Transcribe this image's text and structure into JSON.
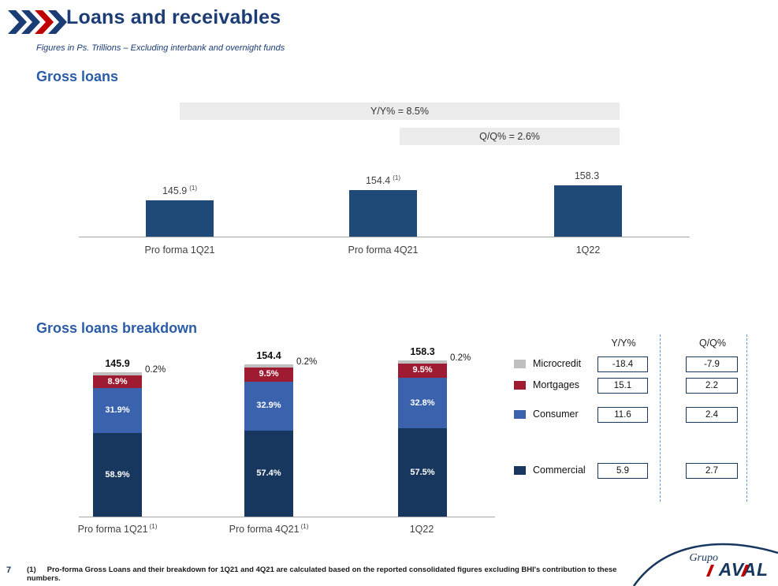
{
  "page": {
    "title": "Loans and receivables",
    "subtitle": "Figures in Ps. Trillions – Excluding interbank and overnight funds",
    "page_number": "7",
    "footnote_marker": "(1)",
    "footnote_text": "Pro-forma Gross Loans and their breakdown for 1Q21 and 4Q21 are calculated based on the reported consolidated figures excluding BHI's contribution to these numbers."
  },
  "logo": {
    "grupo": "Grupo",
    "aval": "AVAL"
  },
  "colors": {
    "title_blue": "#1B3C74",
    "section_blue": "#2B5CA8",
    "bar_navy": "#1F4A78",
    "commercial_navy": "#17375E",
    "consumer_blue": "#3A62AD",
    "mortgage_red": "#9E1B32",
    "microcredit_gray": "#BFBFBF",
    "accent_red": "#C00000",
    "banner_gray": "#EBEBEB"
  },
  "chart_data": [
    {
      "type": "bar",
      "title": "Gross loans",
      "unit": "Ps. Trillions",
      "categories": [
        "Pro forma 1Q21",
        "Pro forma 4Q21",
        "1Q22"
      ],
      "values": [
        145.9,
        154.4,
        158.3
      ],
      "value_labels": [
        "145.9",
        "154.4",
        "158.3"
      ],
      "footnote_markers": [
        "(1)",
        "(1)",
        ""
      ],
      "annotations": [
        {
          "label": "Y/Y% = 8.5%"
        },
        {
          "label": "Q/Q% = 2.6%"
        }
      ],
      "grid": false,
      "baseline_not_zero": true
    },
    {
      "type": "stacked_bar",
      "title": "Gross loans breakdown",
      "unit": "percent of total gross loans",
      "categories": [
        "Pro forma 1Q21",
        "Pro forma 4Q21",
        "1Q22"
      ],
      "category_footnotes": [
        "(1)",
        "(1)",
        ""
      ],
      "totals": [
        145.9,
        154.4,
        158.3
      ],
      "total_labels": [
        "145.9",
        "154.4",
        "158.3"
      ],
      "series": [
        {
          "name": "Commercial",
          "color": "#17375E",
          "pct": [
            58.9,
            57.4,
            57.5
          ],
          "pct_labels": [
            "58.9%",
            "57.4%",
            "57.5%"
          ],
          "yoy": "5.9",
          "qoq": "2.7"
        },
        {
          "name": "Consumer",
          "color": "#3A62AD",
          "pct": [
            31.9,
            32.9,
            32.8
          ],
          "pct_labels": [
            "31.9%",
            "32.9%",
            "32.8%"
          ],
          "yoy": "11.6",
          "qoq": "2.4"
        },
        {
          "name": "Mortgages",
          "color": "#9E1B32",
          "pct": [
            8.9,
            9.5,
            9.5
          ],
          "pct_labels": [
            "8.9%",
            "9.5%",
            "9.5%"
          ],
          "yoy": "15.1",
          "qoq": "2.2"
        },
        {
          "name": "Microcredit",
          "color": "#BFBFBF",
          "pct": [
            0.2,
            0.2,
            0.2
          ],
          "pct_labels": [
            "0.2%",
            "0.2%",
            "0.2%"
          ],
          "yoy": "-18.4",
          "qoq": "-7.9"
        }
      ],
      "legend": {
        "yoy_header": "Y/Y%",
        "qoq_header": "Q/Q%",
        "legend_position": "right"
      }
    }
  ]
}
